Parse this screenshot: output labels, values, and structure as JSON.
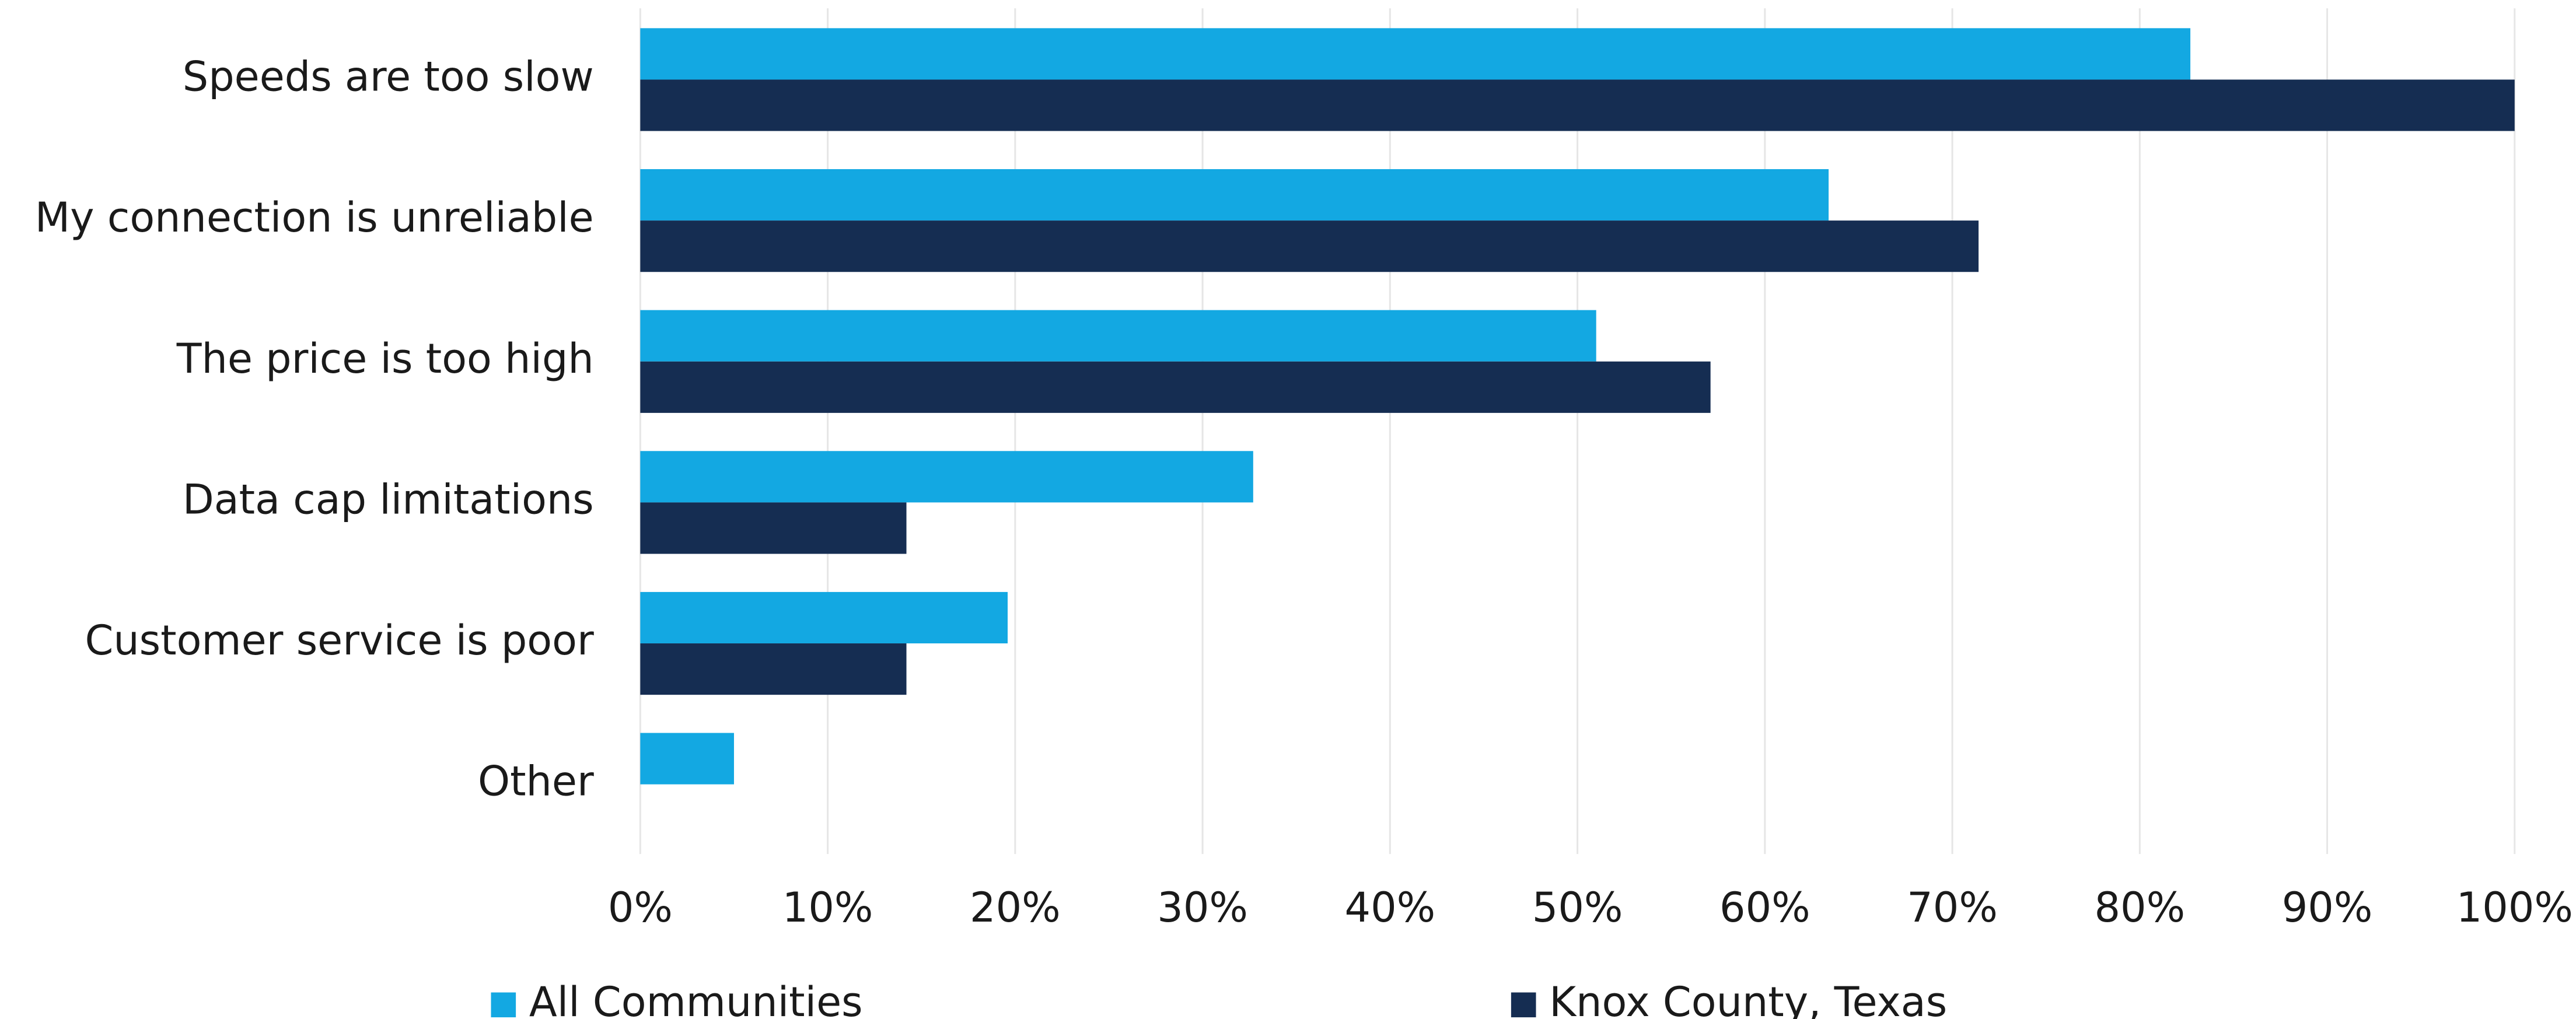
{
  "chart_data": {
    "type": "bar",
    "orientation": "horizontal",
    "categories": [
      "Speeds are too slow",
      "My connection is unreliable",
      "The price is too high",
      "Data cap limitations",
      "Customer service is poor",
      "Other"
    ],
    "series": [
      {
        "name": "All Communities",
        "color": "#13a8e2",
        "values": [
          82.7,
          63.4,
          51.0,
          32.7,
          19.6,
          5.0
        ]
      },
      {
        "name": "Knox County, Texas",
        "color": "#152d52",
        "values": [
          100,
          71.4,
          57.1,
          14.2,
          14.2,
          0
        ]
      }
    ],
    "xlim": [
      0,
      100
    ],
    "xticks": [
      {
        "value": 0,
        "label": "0%"
      },
      {
        "value": 10,
        "label": "10%"
      },
      {
        "value": 20,
        "label": "20%"
      },
      {
        "value": 30,
        "label": "30%"
      },
      {
        "value": 40,
        "label": "40%"
      },
      {
        "value": 50,
        "label": "50%"
      },
      {
        "value": 60,
        "label": "60%"
      },
      {
        "value": 70,
        "label": "70%"
      },
      {
        "value": 80,
        "label": "80%"
      },
      {
        "value": 90,
        "label": "90%"
      },
      {
        "value": 100,
        "label": "100%"
      }
    ],
    "grid": true,
    "legend": "bottom"
  }
}
